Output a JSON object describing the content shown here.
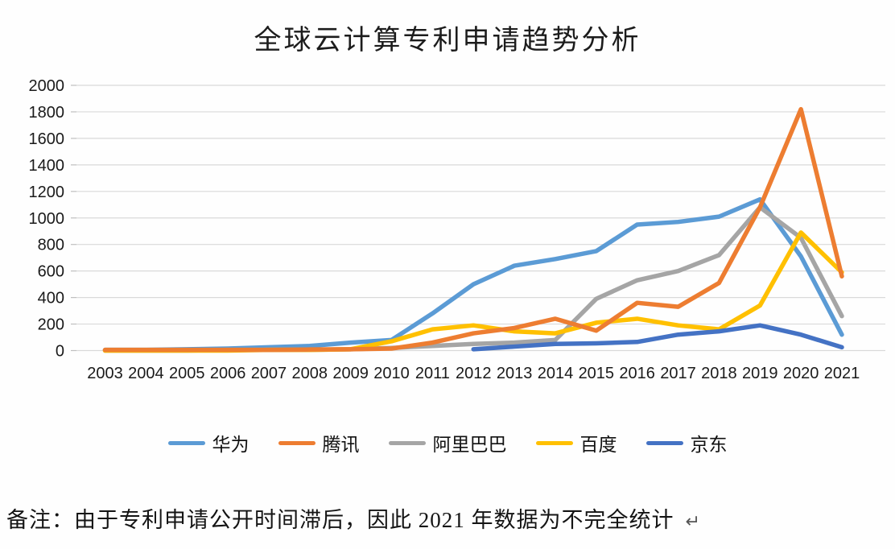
{
  "title": "全球云计算专利申请趋势分析",
  "note": {
    "text": "备注：由于专利申请公开时间滞后，因此 2021 年数据为不完全统计",
    "return_mark": "↵"
  },
  "chart_data": {
    "type": "line",
    "title": "全球云计算专利申请趋势分析",
    "categories": [
      "2003",
      "2004",
      "2005",
      "2006",
      "2007",
      "2008",
      "2009",
      "2010",
      "2011",
      "2012",
      "2013",
      "2014",
      "2015",
      "2016",
      "2017",
      "2018",
      "2019",
      "2020",
      "2021"
    ],
    "series": [
      {
        "name": "华为",
        "color": "#5B9BD5",
        "values": [
          5,
          5,
          10,
          15,
          25,
          35,
          60,
          80,
          280,
          500,
          640,
          690,
          750,
          950,
          970,
          1010,
          1140,
          710,
          120
        ]
      },
      {
        "name": "腾讯",
        "color": "#ED7D31",
        "values": [
          5,
          5,
          5,
          5,
          5,
          8,
          10,
          15,
          60,
          130,
          170,
          240,
          150,
          360,
          330,
          510,
          1080,
          1820,
          560
        ]
      },
      {
        "name": "阿里巴巴",
        "color": "#A5A5A5",
        "values": [
          0,
          0,
          0,
          5,
          5,
          5,
          10,
          20,
          35,
          50,
          60,
          80,
          390,
          530,
          600,
          720,
          1080,
          850,
          260
        ]
      },
      {
        "name": "百度",
        "color": "#FFC000",
        "values": [
          0,
          0,
          0,
          0,
          5,
          5,
          10,
          70,
          160,
          190,
          145,
          130,
          210,
          240,
          190,
          160,
          340,
          890,
          590
        ]
      },
      {
        "name": "京东",
        "color": "#4472C4",
        "values": [
          null,
          null,
          null,
          null,
          null,
          null,
          null,
          null,
          null,
          10,
          30,
          50,
          55,
          65,
          120,
          145,
          190,
          120,
          25
        ]
      }
    ],
    "ylim": [
      0,
      2000
    ],
    "ytick_step": 200,
    "grid": true,
    "legend_position": "bottom",
    "note": "备注：由于专利申请公开时间滞后，因此 2021 年数据为不完全统计"
  }
}
